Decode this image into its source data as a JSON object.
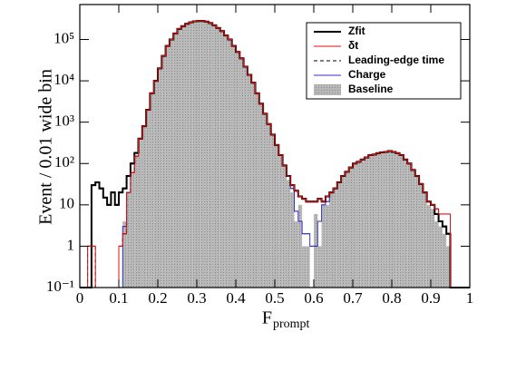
{
  "chart_data": {
    "type": "histogram",
    "y_label": "Event / 0.01 wide bin",
    "x_label": "F",
    "x_label_subscript": "prompt",
    "log_y": true,
    "xlim": [
      0,
      1
    ],
    "xticks": [
      0,
      0.1,
      0.2,
      0.3,
      0.4,
      0.5,
      0.6,
      0.7,
      0.8,
      0.9,
      1
    ],
    "ylim": [
      0.1,
      700000
    ],
    "yticks": [
      {
        "value": 0.1,
        "label": "10⁻¹"
      },
      1,
      10,
      {
        "value": 100,
        "label": "10²"
      },
      {
        "value": 1000,
        "label": "10³"
      },
      {
        "value": 10000,
        "label": "10⁴"
      },
      {
        "value": 100000,
        "label": "10⁵"
      }
    ],
    "legend": "upper right",
    "bins": [
      0,
      0.01,
      0.02,
      0.03,
      0.04,
      0.05,
      0.06,
      0.07,
      0.08,
      0.09,
      0.1,
      0.11,
      0.12,
      0.13,
      0.14,
      0.15,
      0.16,
      0.17,
      0.18,
      0.19,
      0.2,
      0.21,
      0.22,
      0.23,
      0.24,
      0.25,
      0.26,
      0.27,
      0.28,
      0.29,
      0.3,
      0.31,
      0.32,
      0.33,
      0.34,
      0.35,
      0.36,
      0.37,
      0.38,
      0.39,
      0.4,
      0.41,
      0.42,
      0.43,
      0.44,
      0.45,
      0.46,
      0.47,
      0.48,
      0.49,
      0.5,
      0.51,
      0.52,
      0.53,
      0.54,
      0.55,
      0.56,
      0.57,
      0.58,
      0.59,
      0.6,
      0.61,
      0.62,
      0.63,
      0.64,
      0.65,
      0.66,
      0.67,
      0.68,
      0.69,
      0.7,
      0.71,
      0.72,
      0.73,
      0.74,
      0.75,
      0.76,
      0.77,
      0.78,
      0.79,
      0.8,
      0.81,
      0.82,
      0.83,
      0.84,
      0.85,
      0.86,
      0.87,
      0.88,
      0.89,
      0.9,
      0.91,
      0.92,
      0.93,
      0.94,
      0.95,
      0.96,
      0.97,
      0.98,
      0.99,
      1
    ],
    "series": [
      {
        "name": "Baseline",
        "color": "#ababab",
        "filled": true,
        "values": [
          0,
          0,
          0,
          0,
          0,
          0,
          0,
          0,
          0,
          0,
          0,
          4,
          20,
          60,
          150,
          400,
          800,
          2000,
          5000,
          10000,
          20000,
          40000,
          70000,
          100000,
          140000,
          180000,
          210000,
          240000,
          260000,
          275000,
          280000,
          280000,
          270000,
          250000,
          220000,
          190000,
          160000,
          125000,
          100000,
          70000,
          50000,
          35000,
          22000,
          14000,
          9000,
          5000,
          2800,
          1600,
          900,
          500,
          280,
          160,
          90,
          40,
          20,
          4,
          10,
          1,
          1,
          0,
          6,
          1,
          10,
          10,
          20,
          25,
          35,
          50,
          63,
          80,
          100,
          110,
          125,
          140,
          160,
          165,
          178,
          186,
          190,
          200,
          190,
          178,
          160,
          125,
          100,
          70,
          50,
          32,
          20,
          10,
          8,
          4,
          3,
          2,
          1,
          0,
          0,
          0,
          0,
          0
        ]
      },
      {
        "name": "Charge",
        "color": "#3030c8",
        "dash": false,
        "values": [
          0,
          0,
          0,
          0,
          0,
          0,
          0,
          0,
          0,
          0,
          0,
          3,
          20,
          60,
          150,
          400,
          800,
          2000,
          5000,
          10000,
          20000,
          40000,
          70000,
          100000,
          140000,
          180000,
          210000,
          240000,
          260000,
          275000,
          280000,
          280000,
          270000,
          250000,
          220000,
          190000,
          160000,
          125000,
          100000,
          70000,
          50000,
          35000,
          22000,
          14000,
          9000,
          5000,
          2800,
          1600,
          900,
          500,
          280,
          160,
          90,
          50,
          25,
          7,
          4,
          2,
          2,
          1,
          1,
          4,
          10,
          12,
          20,
          25,
          35,
          50,
          63,
          80,
          100,
          110,
          125,
          140,
          160,
          165,
          178,
          186,
          190,
          200,
          190,
          178,
          160,
          125,
          100,
          70,
          50,
          32,
          20,
          12,
          10,
          6,
          4,
          3,
          2,
          0,
          0,
          0,
          0,
          0
        ]
      },
      {
        "name": "Leading-edge time",
        "color": "#000000",
        "dash": true,
        "values": [
          0,
          0,
          1,
          1,
          0,
          0,
          0,
          0,
          0,
          0,
          1,
          2,
          20,
          60,
          150,
          400,
          800,
          2000,
          5000,
          10000,
          20000,
          40000,
          70000,
          100000,
          140000,
          180000,
          210000,
          240000,
          260000,
          275000,
          280000,
          280000,
          270000,
          250000,
          220000,
          190000,
          160000,
          125000,
          100000,
          70000,
          50000,
          35000,
          22000,
          14000,
          9000,
          5000,
          2800,
          1600,
          900,
          500,
          280,
          160,
          90,
          50,
          30,
          22,
          16,
          14,
          12,
          12,
          12,
          14,
          12,
          16,
          20,
          25,
          35,
          50,
          63,
          80,
          100,
          110,
          125,
          140,
          160,
          165,
          178,
          186,
          190,
          200,
          190,
          178,
          160,
          125,
          100,
          70,
          50,
          32,
          20,
          12,
          10,
          8,
          6,
          6,
          6,
          0,
          0,
          0,
          0,
          0
        ]
      },
      {
        "name": "Zfit",
        "color": "#000000",
        "dash": false,
        "width": 2,
        "values": [
          0,
          0,
          0,
          30,
          35,
          25,
          15,
          10,
          20,
          10,
          20,
          25,
          50,
          100,
          180,
          400,
          800,
          2000,
          5000,
          10000,
          20000,
          40000,
          70000,
          100000,
          140000,
          180000,
          210000,
          240000,
          260000,
          275000,
          280000,
          280000,
          270000,
          250000,
          220000,
          190000,
          160000,
          125000,
          100000,
          70000,
          50000,
          35000,
          22000,
          14000,
          9000,
          5000,
          2800,
          1600,
          900,
          500,
          280,
          160,
          90,
          50,
          30,
          22,
          16,
          14,
          12,
          12,
          12,
          14,
          12,
          16,
          20,
          25,
          35,
          50,
          63,
          80,
          100,
          110,
          125,
          140,
          160,
          165,
          178,
          186,
          190,
          200,
          190,
          178,
          160,
          125,
          100,
          70,
          50,
          32,
          20,
          12,
          10,
          6,
          4,
          3,
          2,
          0,
          0,
          0,
          0,
          0
        ]
      },
      {
        "name": "δt",
        "color": "#e01010",
        "dash": false,
        "values": [
          0,
          0,
          1,
          1,
          0,
          0,
          0,
          0,
          0,
          0,
          1,
          2,
          20,
          60,
          150,
          400,
          800,
          2000,
          5000,
          10000,
          20000,
          40000,
          70000,
          100000,
          140000,
          180000,
          210000,
          240000,
          260000,
          275000,
          280000,
          280000,
          270000,
          250000,
          220000,
          190000,
          160000,
          125000,
          100000,
          70000,
          50000,
          35000,
          22000,
          14000,
          9000,
          5000,
          2800,
          1600,
          900,
          500,
          280,
          160,
          90,
          50,
          30,
          22,
          16,
          14,
          12,
          12,
          12,
          14,
          12,
          16,
          20,
          25,
          35,
          50,
          63,
          80,
          100,
          110,
          125,
          140,
          160,
          165,
          178,
          186,
          190,
          200,
          190,
          178,
          160,
          125,
          100,
          70,
          50,
          32,
          20,
          12,
          10,
          8,
          6,
          6,
          6,
          0,
          0,
          0,
          0,
          0
        ]
      }
    ]
  }
}
